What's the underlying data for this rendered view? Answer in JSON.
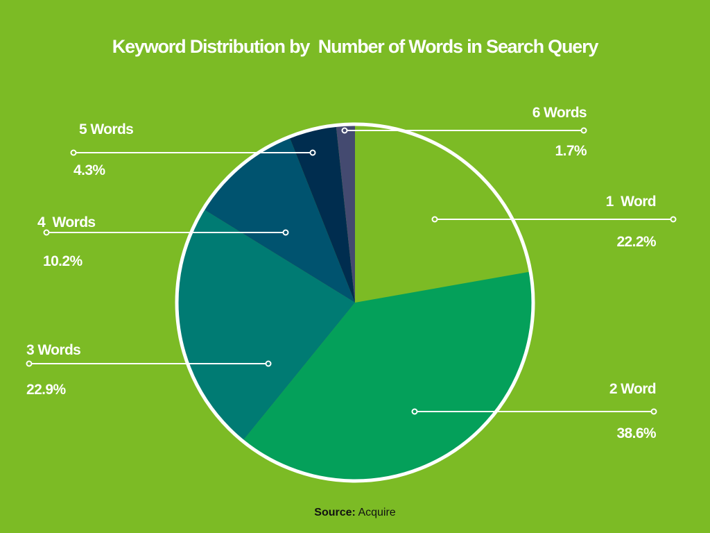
{
  "title": "Keyword Distribution by  Number of Words in Search Query",
  "source": {
    "label": "Source:",
    "value": "Acquire"
  },
  "colors": {
    "background": "#7cbb25",
    "ring": "#ffffff",
    "text": "#ffffff"
  },
  "slices": [
    {
      "label": "1  Word",
      "value_label": "22.2%",
      "color": "#7cbb25"
    },
    {
      "label": "2 Word",
      "value_label": "38.6%",
      "color": "#04a05a"
    },
    {
      "label": "3 Words",
      "value_label": "22.9%",
      "color": "#007b73"
    },
    {
      "label": "4  Words",
      "value_label": "10.2%",
      "color": "#00536f"
    },
    {
      "label": "5 Words",
      "value_label": "4.3%",
      "color": "#002d4f"
    },
    {
      "label": "6 Words",
      "value_label": "1.7%",
      "color": "#444a70"
    }
  ],
  "chart_data": {
    "type": "pie",
    "title": "Keyword Distribution by  Number of Words in Search Query",
    "categories": [
      "1 Word",
      "2 Word",
      "3 Words",
      "4 Words",
      "5 Words",
      "6 Words"
    ],
    "values": [
      22.2,
      38.6,
      22.9,
      10.2,
      4.3,
      1.7
    ],
    "unit": "%",
    "start_angle": "12 o'clock",
    "direction": "clockwise",
    "colors": [
      "#7cbb25",
      "#04a05a",
      "#007b73",
      "#00536f",
      "#002d4f",
      "#444a70"
    ],
    "legend": "none (leader-line callouts)",
    "annotation": "Source: Acquire"
  }
}
